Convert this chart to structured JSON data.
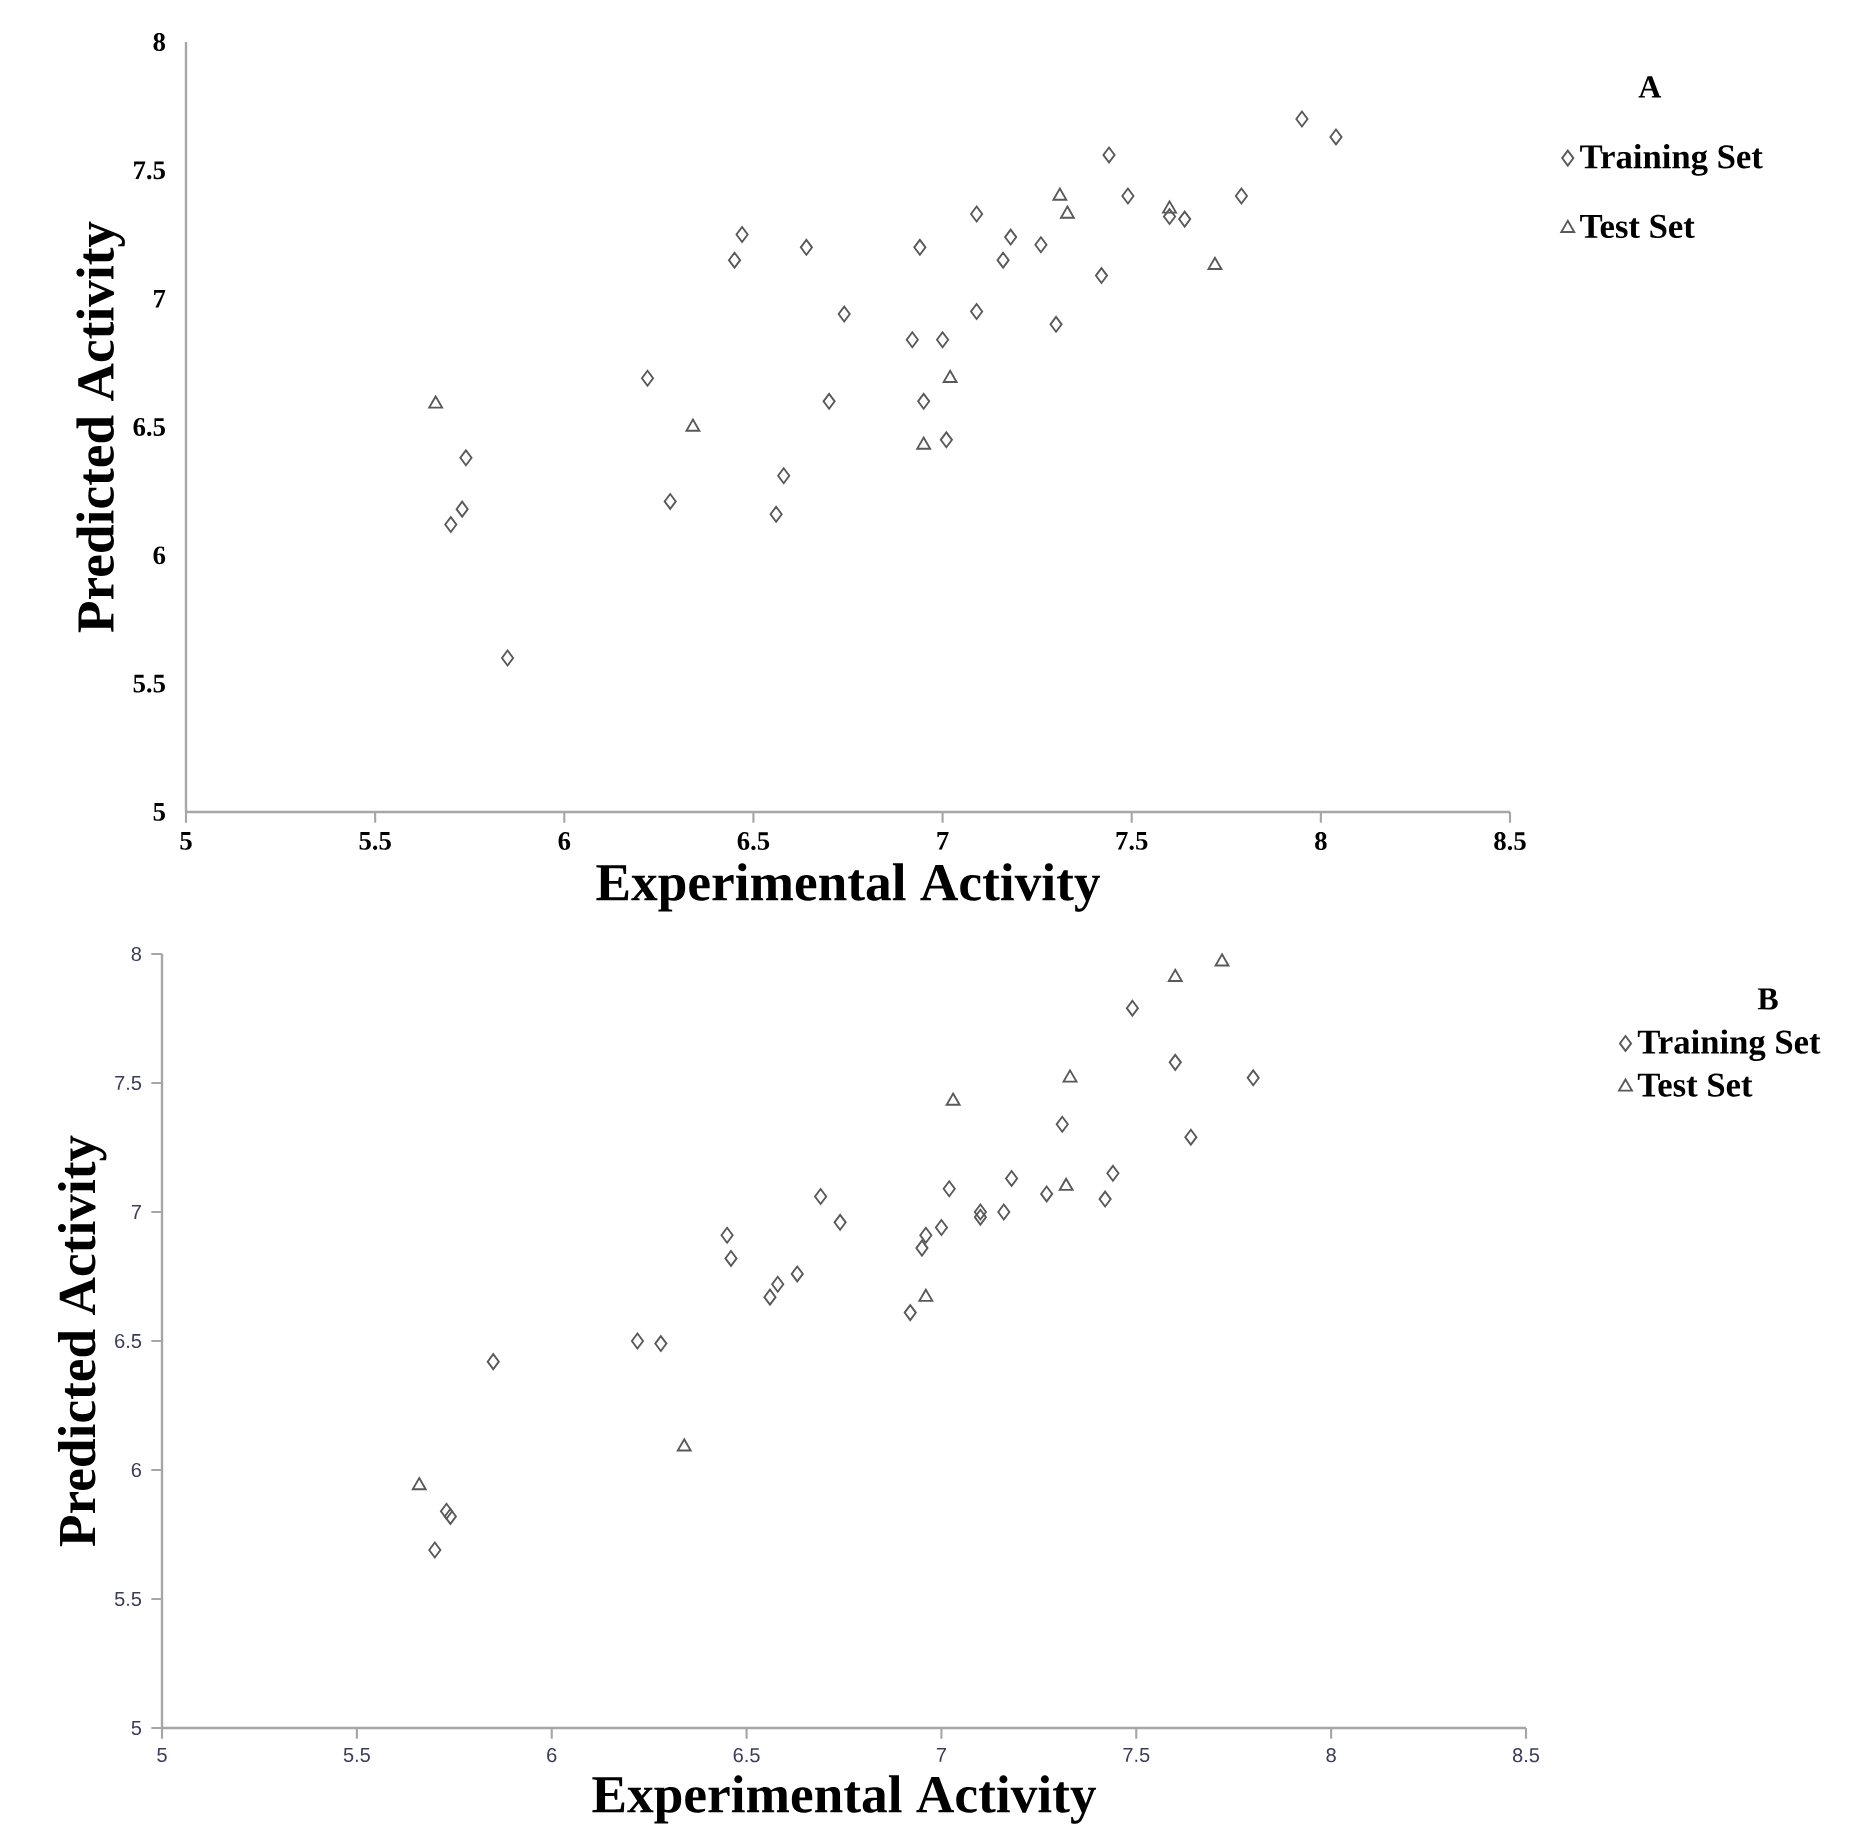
{
  "chart_data": [
    {
      "type": "scatter",
      "legend_title": "A",
      "xlabel": "Experimental Activity",
      "ylabel": "Predicted Activity",
      "xlim": [
        5,
        8.5
      ],
      "ylim": [
        5,
        8
      ],
      "xticks": [
        5,
        5.5,
        6,
        6.5,
        7,
        7.5,
        8,
        8.5
      ],
      "yticks": [
        5,
        5.5,
        6,
        6.5,
        7,
        7.5,
        8
      ],
      "legend": "right",
      "series": [
        {
          "name": "Training Set",
          "marker": "diamond",
          "color": "#595959",
          "x": [
            5.85,
            5.7,
            5.73,
            5.74,
            6.22,
            6.28,
            6.45,
            6.47,
            6.56,
            6.58,
            6.64,
            6.7,
            6.74,
            6.92,
            6.94,
            6.95,
            7.0,
            7.01,
            7.09,
            7.09,
            7.16,
            7.18,
            7.26,
            7.3,
            7.42,
            7.44,
            7.49,
            7.6,
            7.64,
            7.79,
            7.95,
            8.04
          ],
          "values": [
            5.6,
            6.12,
            6.18,
            6.38,
            6.69,
            6.21,
            7.15,
            7.25,
            6.16,
            6.31,
            7.2,
            6.6,
            6.94,
            6.84,
            7.2,
            6.6,
            6.84,
            6.45,
            6.95,
            7.33,
            7.15,
            7.24,
            7.21,
            6.9,
            7.09,
            7.56,
            7.4,
            7.32,
            7.31,
            7.4,
            7.7,
            7.63
          ]
        },
        {
          "name": "Test Set",
          "marker": "triangle",
          "color": "#595959",
          "x": [
            5.66,
            6.34,
            6.95,
            7.02,
            7.31,
            7.33,
            7.6,
            7.72
          ],
          "values": [
            6.59,
            6.5,
            6.43,
            6.69,
            7.4,
            7.33,
            7.35,
            7.13
          ]
        }
      ]
    },
    {
      "type": "scatter",
      "legend_title": "B",
      "xlabel": "Experimental Activity",
      "ylabel": "Predicted Activity",
      "xlim": [
        5,
        8.5
      ],
      "ylim": [
        5,
        8
      ],
      "xticks": [
        5,
        5.5,
        6,
        6.5,
        7,
        7.5,
        8,
        8.5
      ],
      "yticks": [
        5,
        5.5,
        6,
        6.5,
        7,
        7.5,
        8
      ],
      "legend": "right",
      "series": [
        {
          "name": "Training Set",
          "marker": "diamond",
          "color": "#595959",
          "x": [
            5.73,
            5.74,
            5.7,
            5.85,
            6.22,
            6.28,
            6.45,
            6.46,
            6.56,
            6.58,
            6.63,
            6.69,
            6.74,
            6.92,
            6.95,
            6.96,
            7.0,
            7.02,
            7.1,
            7.1,
            7.16,
            7.18,
            7.27,
            7.31,
            7.42,
            7.44,
            7.49,
            7.6,
            7.64,
            7.8
          ],
          "values": [
            5.84,
            5.82,
            5.69,
            6.42,
            6.5,
            6.49,
            6.91,
            6.82,
            6.67,
            6.72,
            6.76,
            7.06,
            6.96,
            6.61,
            6.86,
            6.91,
            6.94,
            7.09,
            7.0,
            6.98,
            7.0,
            7.13,
            7.07,
            7.34,
            7.05,
            7.15,
            7.79,
            7.58,
            7.29,
            7.52
          ]
        },
        {
          "name": "Test Set",
          "marker": "triangle",
          "color": "#595959",
          "x": [
            5.66,
            6.34,
            6.96,
            7.03,
            7.32,
            7.33,
            7.6,
            7.72
          ],
          "values": [
            5.94,
            6.09,
            6.67,
            7.43,
            7.1,
            7.52,
            7.91,
            7.97
          ]
        }
      ]
    }
  ]
}
